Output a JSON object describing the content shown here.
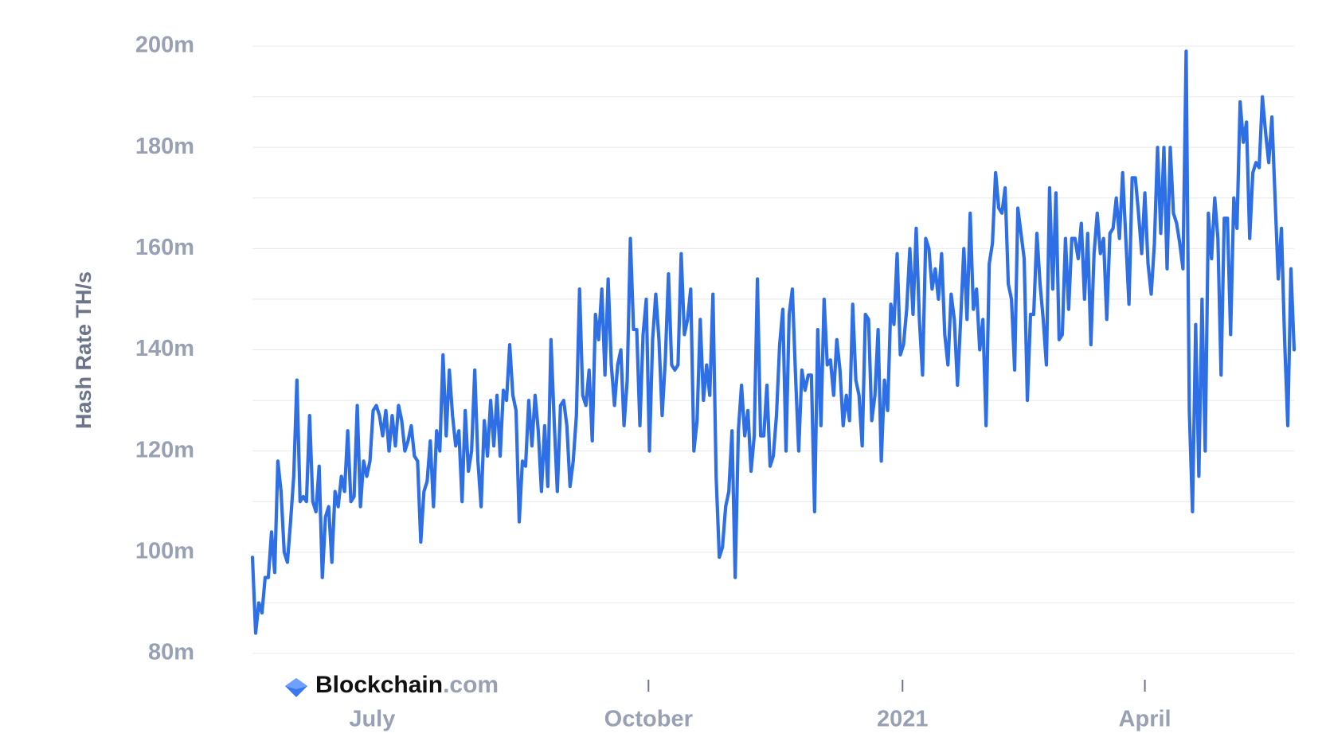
{
  "chart_data": {
    "type": "line",
    "y_label": "Hash Rate TH/s",
    "logo": "Blockchain",
    "logo_suffix": ".com",
    "color": "#2f6fe6",
    "grid": true,
    "xlim": [
      0,
      328
    ],
    "xticks": [
      {
        "value": 37.7,
        "label": "July"
      },
      {
        "value": 124.7,
        "label": "October"
      },
      {
        "value": 204.7,
        "label": "2021"
      },
      {
        "value": 281,
        "label": "April"
      }
    ],
    "ylim": [
      80000000.0,
      200000000.0
    ],
    "yticks": [
      {
        "value": 80000000.0,
        "label": "80m"
      },
      {
        "value": 100000000.0,
        "label": "100m"
      },
      {
        "value": 120000000.0,
        "label": "120m"
      },
      {
        "value": 140000000.0,
        "label": "140m"
      },
      {
        "value": 160000000.0,
        "label": "160m"
      },
      {
        "value": 180000000.0,
        "label": "180m"
      },
      {
        "value": 200000000.0,
        "label": "200m"
      }
    ],
    "ygrid_minor": [
      90000000.0,
      110000000.0,
      130000000.0,
      150000000.0,
      170000000.0,
      190000000.0
    ],
    "values": [
      99000000.0,
      84000000.0,
      90000000.0,
      88000000.0,
      95000000.0,
      95000000.0,
      104000000.0,
      96000000.0,
      118000000.0,
      112000000.0,
      100000000.0,
      98000000.0,
      106000000.0,
      115000000.0,
      134000000.0,
      110000000.0,
      111000000.0,
      110000000.0,
      127000000.0,
      110000000.0,
      108000000.0,
      117000000.0,
      95000000.0,
      107000000.0,
      109000000.0,
      98000000.0,
      112000000.0,
      109000000.0,
      115000000.0,
      112000000.0,
      124000000.0,
      110000000.0,
      111000000.0,
      129000000.0,
      109000000.0,
      118000000.0,
      115000000.0,
      118000000.0,
      128000000.0,
      129000000.0,
      127000000.0,
      123000000.0,
      128000000.0,
      120000000.0,
      127000000.0,
      121000000.0,
      129000000.0,
      126000000.0,
      120000000.0,
      122000000.0,
      125000000.0,
      119000000.0,
      118000000.0,
      102000000.0,
      112000000.0,
      114000000.0,
      122000000.0,
      109000000.0,
      124000000.0,
      120000000.0,
      139000000.0,
      123000000.0,
      136000000.0,
      127000000.0,
      121000000.0,
      124000000.0,
      110000000.0,
      128000000.0,
      116000000.0,
      120000000.0,
      136000000.0,
      118000000.0,
      109000000.0,
      126000000.0,
      119000000.0,
      130000000.0,
      121000000.0,
      131000000.0,
      119000000.0,
      132000000.0,
      130000000.0,
      141000000.0,
      131000000.0,
      128000000.0,
      106000000.0,
      118000000.0,
      117000000.0,
      130000000.0,
      121000000.0,
      131000000.0,
      124000000.0,
      112000000.0,
      125000000.0,
      113000000.0,
      142000000.0,
      126000000.0,
      112000000.0,
      129000000.0,
      130000000.0,
      125000000.0,
      113000000.0,
      118000000.0,
      127000000.0,
      152000000.0,
      131000000.0,
      129000000.0,
      136000000.0,
      122000000.0,
      147000000.0,
      142000000.0,
      152000000.0,
      135000000.0,
      154000000.0,
      137000000.0,
      129000000.0,
      137000000.0,
      140000000.0,
      125000000.0,
      134000000.0,
      162000000.0,
      144000000.0,
      144000000.0,
      125000000.0,
      143000000.0,
      150000000.0,
      120000000.0,
      142000000.0,
      151000000.0,
      142000000.0,
      127000000.0,
      138000000.0,
      155000000.0,
      137000000.0,
      136000000.0,
      137000000.0,
      159000000.0,
      143000000.0,
      146000000.0,
      152000000.0,
      120000000.0,
      126000000.0,
      146000000.0,
      130000000.0,
      137000000.0,
      131000000.0,
      151000000.0,
      115000000.0,
      99000000.0,
      101000000.0,
      109000000.0,
      112000000.0,
      124000000.0,
      95000000.0,
      124000000.0,
      133000000.0,
      123000000.0,
      128000000.0,
      116000000.0,
      123000000.0,
      154000000.0,
      123000000.0,
      123000000.0,
      133000000.0,
      117000000.0,
      119000000.0,
      127000000.0,
      141000000.0,
      148000000.0,
      120000000.0,
      147000000.0,
      152000000.0,
      135000000.0,
      120000000.0,
      136000000.0,
      132000000.0,
      135000000.0,
      135000000.0,
      108000000.0,
      144000000.0,
      125000000.0,
      150000000.0,
      137000000.0,
      138000000.0,
      131000000.0,
      142000000.0,
      136000000.0,
      125000000.0,
      131000000.0,
      126000000.0,
      149000000.0,
      134000000.0,
      131000000.0,
      121000000.0,
      147000000.0,
      146000000.0,
      126000000.0,
      131000000.0,
      144000000.0,
      118000000.0,
      134000000.0,
      128000000.0,
      149000000.0,
      145000000.0,
      159000000.0,
      139000000.0,
      141000000.0,
      148000000.0,
      160000000.0,
      147000000.0,
      164000000.0,
      146000000.0,
      135000000.0,
      162000000.0,
      160000000.0,
      152000000.0,
      156000000.0,
      150000000.0,
      159000000.0,
      143000000.0,
      137000000.0,
      151000000.0,
      146000000.0,
      133000000.0,
      146000000.0,
      160000000.0,
      146000000.0,
      167000000.0,
      148000000.0,
      152000000.0,
      140000000.0,
      146000000.0,
      125000000.0,
      157000000.0,
      161000000.0,
      175000000.0,
      168000000.0,
      167000000.0,
      172000000.0,
      153000000.0,
      150000000.0,
      136000000.0,
      168000000.0,
      163000000.0,
      158000000.0,
      130000000.0,
      147000000.0,
      147000000.0,
      163000000.0,
      153000000.0,
      146000000.0,
      137000000.0,
      172000000.0,
      152000000.0,
      171000000.0,
      142000000.0,
      143000000.0,
      162000000.0,
      148000000.0,
      162000000.0,
      162000000.0,
      158000000.0,
      165000000.0,
      150000000.0,
      163000000.0,
      141000000.0,
      159000000.0,
      167000000.0,
      159000000.0,
      162000000.0,
      146000000.0,
      163000000.0,
      164000000.0,
      170000000.0,
      162000000.0,
      175000000.0,
      162000000.0,
      149000000.0,
      174000000.0,
      174000000.0,
      167000000.0,
      159000000.0,
      171000000.0,
      157000000.0,
      151000000.0,
      161000000.0,
      180000000.0,
      163000000.0,
      180000000.0,
      156000000.0,
      180000000.0,
      167000000.0,
      165000000.0,
      161000000.0,
      156000000.0,
      199000000.0,
      128000000.0,
      108000000.0,
      145000000.0,
      115000000.0,
      150000000.0,
      120000000.0,
      167000000.0,
      158000000.0,
      170000000.0,
      162000000.0,
      135000000.0,
      166000000.0,
      166000000.0,
      143000000.0,
      170000000.0,
      164000000.0,
      189000000.0,
      181000000.0,
      185000000.0,
      162000000.0,
      175000000.0,
      177000000.0,
      176000000.0,
      190000000.0,
      183000000.0,
      177000000.0,
      186000000.0,
      170000000.0,
      154000000.0,
      164000000.0,
      142000000.0,
      125000000.0,
      156000000.0,
      140000000.0
    ]
  }
}
